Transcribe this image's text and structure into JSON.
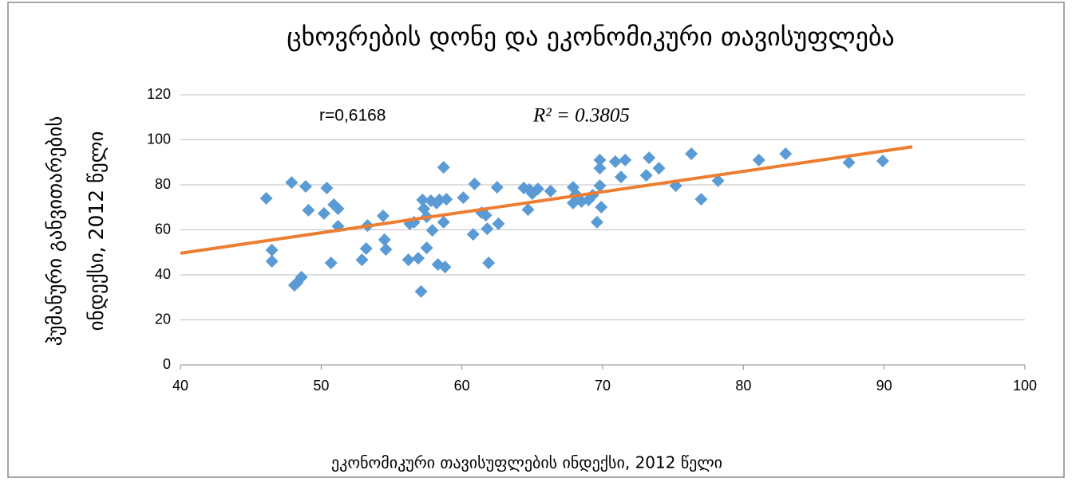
{
  "chart_data": {
    "type": "scatter",
    "title": "ცხოვრების დონე და ეკონომიკური თავისუფლება",
    "xlabel": "ეკონომიკური თავისუფლების ინდექსი, 2012 წელი",
    "ylabel": [
      "ჰუმანური განვითარების",
      "ინდექსი, 2012  წელი"
    ],
    "annotations": [
      "r=0,6168",
      "R² = 0.3805"
    ],
    "xlim": [
      40,
      100
    ],
    "xticks": [
      40,
      50,
      60,
      70,
      80,
      90,
      100
    ],
    "ylim": [
      0,
      120
    ],
    "yticks": [
      0,
      20,
      40,
      60,
      80,
      100,
      120
    ],
    "grid": true,
    "series": [
      {
        "color": "#5b9bd5",
        "x": [
          46.1,
          46.5,
          46.5,
          47.9,
          48.1,
          48.3,
          48.6,
          48.9,
          49.1,
          50.2,
          50.4,
          50.7,
          50.9,
          51.2,
          51.2,
          52.9,
          53.2,
          53.3,
          54.4,
          54.5,
          54.6,
          56.3,
          56.2,
          56.6,
          56.9,
          57.1,
          57.2,
          57.3,
          57.5,
          57.5,
          57.8,
          57.9,
          58.2,
          58.3,
          58.4,
          58.8,
          58.7,
          58.7,
          58.9,
          60.1,
          60.8,
          60.9,
          61.4,
          61.7,
          61.8,
          61.9,
          62.5,
          62.6,
          64.4,
          64.7,
          64.8,
          65.0,
          65.4,
          66.3,
          67.9,
          67.9,
          68.1,
          68.5,
          69.0,
          69.3,
          69.6,
          69.8,
          69.8,
          69.8,
          69.9,
          70.9,
          71.3,
          71.6,
          73.1,
          73.3,
          74.0,
          75.2,
          76.3,
          77.0,
          78.2,
          81.1,
          83.0,
          87.5,
          89.9
        ],
        "values": [
          74,
          51,
          46,
          81,
          35.4,
          36.5,
          39,
          79.3,
          68.7,
          67.3,
          78.6,
          45.3,
          71.2,
          69.4,
          61.6,
          46.7,
          51.7,
          61.9,
          66.2,
          55.6,
          51.3,
          62.7,
          46.7,
          63.4,
          47.4,
          32.6,
          73.3,
          69.4,
          52,
          65.8,
          72.9,
          59.8,
          71.9,
          44.6,
          73.3,
          43.5,
          87.8,
          63.4,
          73.6,
          74.3,
          58,
          80.4,
          67.6,
          66.5,
          60.5,
          45.3,
          78.9,
          62.7,
          78.6,
          69,
          77.9,
          76.1,
          78.2,
          77.2,
          78.9,
          71.9,
          75.8,
          72.6,
          73.3,
          75.4,
          63.4,
          91,
          87.4,
          79.6,
          70.1,
          90.3,
          83.5,
          91,
          84.2,
          92,
          87.4,
          79.6,
          93.8,
          73.6,
          81.8,
          91,
          93.8,
          89.9,
          90.6
        ]
      }
    ],
    "trendline": {
      "color": "#ed7d31",
      "x": [
        40,
        92
      ],
      "values": [
        49.6,
        96.9
      ]
    }
  }
}
